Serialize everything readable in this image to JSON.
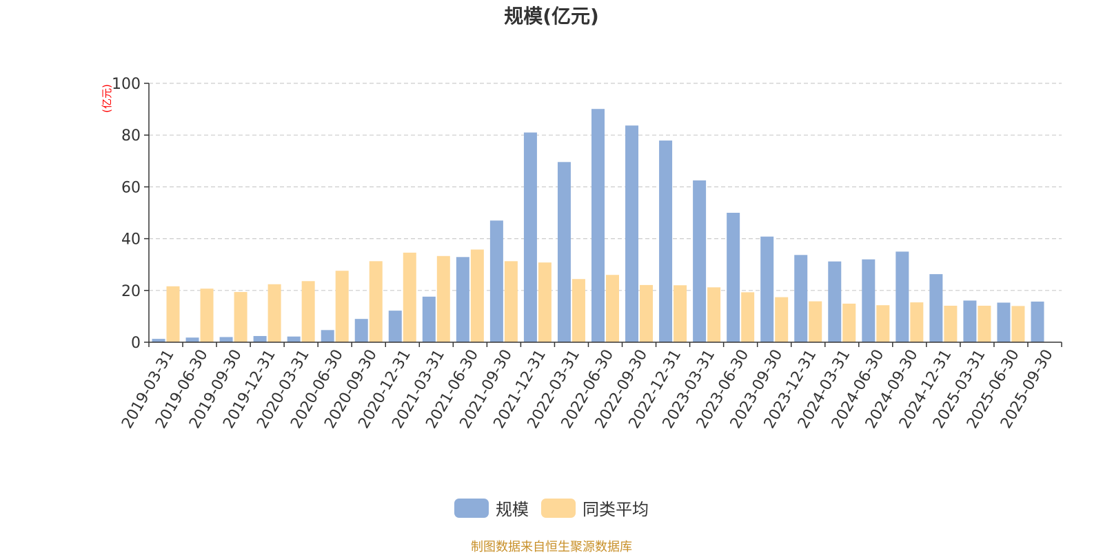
{
  "chart_data": {
    "type": "bar",
    "title": "规模(亿元)",
    "ylabel": "(亿元)",
    "xlabel": "",
    "ylim": [
      0,
      100
    ],
    "yticks": [
      0,
      20,
      40,
      60,
      80,
      100
    ],
    "grid": true,
    "legend_position": "bottom-center",
    "categories": [
      "2019-03-31",
      "2019-06-30",
      "2019-09-30",
      "2019-12-31",
      "2020-03-31",
      "2020-06-30",
      "2020-09-30",
      "2020-12-31",
      "2021-03-31",
      "2021-06-30",
      "2021-09-30",
      "2021-12-31",
      "2022-03-31",
      "2022-06-30",
      "2022-09-30",
      "2022-12-31",
      "2023-03-31",
      "2023-06-30",
      "2023-09-30",
      "2023-12-31",
      "2024-03-31",
      "2024-06-30",
      "2024-09-30",
      "2024-12-31",
      "2025-03-31",
      "2025-06-30",
      "2025-09-30"
    ],
    "series": [
      {
        "name": "规模",
        "color": "#8eadd9",
        "values": [
          1.3,
          1.8,
          2.0,
          2.4,
          2.2,
          4.7,
          9.0,
          12.2,
          17.6,
          32.9,
          47.0,
          81.0,
          69.6,
          90.1,
          83.7,
          77.9,
          62.5,
          50.0,
          40.8,
          33.7,
          31.2,
          32.0,
          35.0,
          26.3,
          16.1,
          15.3,
          15.7
        ]
      },
      {
        "name": "同类平均",
        "color": "#fed898",
        "values": [
          21.6,
          20.7,
          19.4,
          22.4,
          23.6,
          27.6,
          31.3,
          34.6,
          33.3,
          35.8,
          31.3,
          30.8,
          24.4,
          26.0,
          22.1,
          22.0,
          21.2,
          19.3,
          17.4,
          15.8,
          14.9,
          14.3,
          15.4,
          14.1,
          14.1,
          14.0,
          null
        ]
      }
    ]
  },
  "legend": [
    {
      "label": "规模",
      "color": "#8eadd9"
    },
    {
      "label": "同类平均",
      "color": "#fed898"
    }
  ],
  "source_note": "制图数据来自恒生聚源数据库",
  "colors": {
    "axis": "#333333",
    "grid": "#cccccc",
    "unit_label": "#ff0000",
    "source": "#c8902a"
  }
}
